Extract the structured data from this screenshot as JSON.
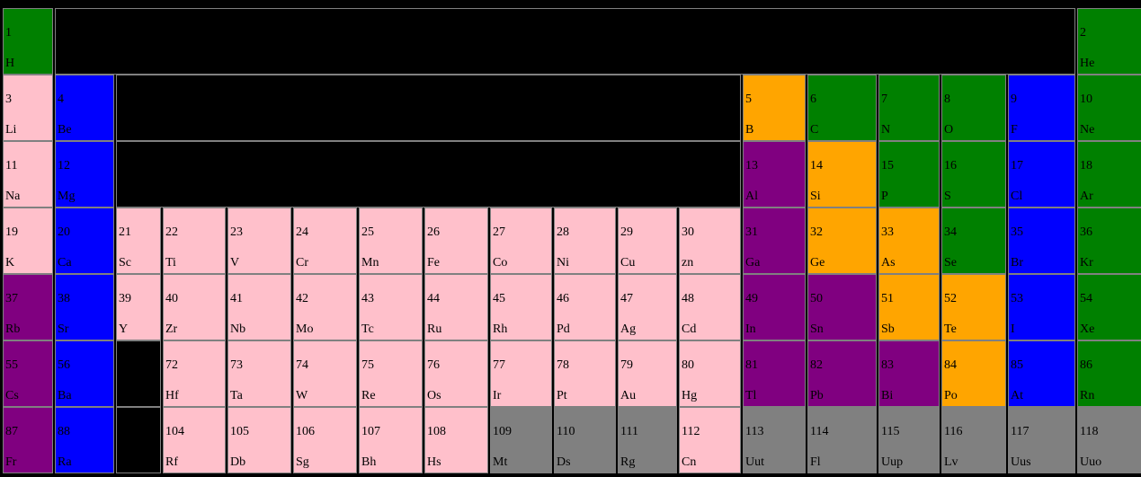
{
  "colors": {
    "nonmetal": "#008000",
    "alkali": "#ffc0cb",
    "transition": "#ffc0cb",
    "alkaline_earth": "#0000ff",
    "halogen": "#0000ff",
    "metalloid": "#ffa500",
    "post_transition": "#800080",
    "unknown": "#808080",
    "empty": "#000000"
  },
  "elements": [
    {
      "n": "1",
      "s": "H",
      "cat": "nonmetal",
      "row": 1,
      "col": 1
    },
    {
      "n": "2",
      "s": "He",
      "cat": "nonmetal",
      "row": 1,
      "col": 18
    },
    {
      "n": "3",
      "s": "Li",
      "cat": "alkali",
      "row": 2,
      "col": 1
    },
    {
      "n": "4",
      "s": "Be",
      "cat": "alkaline_earth",
      "row": 2,
      "col": 2
    },
    {
      "n": "5",
      "s": "B",
      "cat": "metalloid",
      "row": 2,
      "col": 13
    },
    {
      "n": "6",
      "s": "C",
      "cat": "nonmetal",
      "row": 2,
      "col": 14
    },
    {
      "n": "7",
      "s": "N",
      "cat": "nonmetal",
      "row": 2,
      "col": 15
    },
    {
      "n": "8",
      "s": "O",
      "cat": "nonmetal",
      "row": 2,
      "col": 16
    },
    {
      "n": "9",
      "s": "F",
      "cat": "halogen",
      "row": 2,
      "col": 17
    },
    {
      "n": "10",
      "s": "Ne",
      "cat": "nonmetal",
      "row": 2,
      "col": 18
    },
    {
      "n": "11",
      "s": "Na",
      "cat": "alkali",
      "row": 3,
      "col": 1
    },
    {
      "n": "12",
      "s": "Mg",
      "cat": "alkaline_earth",
      "row": 3,
      "col": 2
    },
    {
      "n": "13",
      "s": "Al",
      "cat": "post_transition",
      "row": 3,
      "col": 13
    },
    {
      "n": "14",
      "s": "Si",
      "cat": "metalloid",
      "row": 3,
      "col": 14
    },
    {
      "n": "15",
      "s": "P",
      "cat": "nonmetal",
      "row": 3,
      "col": 15
    },
    {
      "n": "16",
      "s": "S",
      "cat": "nonmetal",
      "row": 3,
      "col": 16
    },
    {
      "n": "17",
      "s": "Cl",
      "cat": "halogen",
      "row": 3,
      "col": 17
    },
    {
      "n": "18",
      "s": "Ar",
      "cat": "nonmetal",
      "row": 3,
      "col": 18
    },
    {
      "n": "19",
      "s": "K",
      "cat": "alkali",
      "row": 4,
      "col": 1
    },
    {
      "n": "20",
      "s": "Ca",
      "cat": "alkaline_earth",
      "row": 4,
      "col": 2
    },
    {
      "n": "21",
      "s": "Sc",
      "cat": "transition",
      "row": 4,
      "col": 3
    },
    {
      "n": "22",
      "s": "Ti",
      "cat": "transition",
      "row": 4,
      "col": 4
    },
    {
      "n": "23",
      "s": "V",
      "cat": "transition",
      "row": 4,
      "col": 5
    },
    {
      "n": "24",
      "s": "Cr",
      "cat": "transition",
      "row": 4,
      "col": 6
    },
    {
      "n": "25",
      "s": "Mn",
      "cat": "transition",
      "row": 4,
      "col": 7
    },
    {
      "n": "26",
      "s": "Fe",
      "cat": "transition",
      "row": 4,
      "col": 8
    },
    {
      "n": "27",
      "s": "Co",
      "cat": "transition",
      "row": 4,
      "col": 9
    },
    {
      "n": "28",
      "s": "Ni",
      "cat": "transition",
      "row": 4,
      "col": 10
    },
    {
      "n": "29",
      "s": "Cu",
      "cat": "transition",
      "row": 4,
      "col": 11
    },
    {
      "n": "30",
      "s": "zn",
      "cat": "transition",
      "row": 4,
      "col": 12
    },
    {
      "n": "31",
      "s": "Ga",
      "cat": "post_transition",
      "row": 4,
      "col": 13
    },
    {
      "n": "32",
      "s": "Ge",
      "cat": "metalloid",
      "row": 4,
      "col": 14
    },
    {
      "n": "33",
      "s": "As",
      "cat": "metalloid",
      "row": 4,
      "col": 15
    },
    {
      "n": "34",
      "s": "Se",
      "cat": "nonmetal",
      "row": 4,
      "col": 16
    },
    {
      "n": "35",
      "s": "Br",
      "cat": "halogen",
      "row": 4,
      "col": 17
    },
    {
      "n": "36",
      "s": "Kr",
      "cat": "nonmetal",
      "row": 4,
      "col": 18
    },
    {
      "n": "37",
      "s": "Rb",
      "cat": "post_transition",
      "row": 5,
      "col": 1
    },
    {
      "n": "38",
      "s": "Sr",
      "cat": "alkaline_earth",
      "row": 5,
      "col": 2
    },
    {
      "n": "39",
      "s": "Y",
      "cat": "transition",
      "row": 5,
      "col": 3
    },
    {
      "n": "40",
      "s": "Zr",
      "cat": "transition",
      "row": 5,
      "col": 4
    },
    {
      "n": "41",
      "s": "Nb",
      "cat": "transition",
      "row": 5,
      "col": 5
    },
    {
      "n": "42",
      "s": "Mo",
      "cat": "transition",
      "row": 5,
      "col": 6
    },
    {
      "n": "43",
      "s": "Tc",
      "cat": "transition",
      "row": 5,
      "col": 7
    },
    {
      "n": "44",
      "s": "Ru",
      "cat": "transition",
      "row": 5,
      "col": 8
    },
    {
      "n": "45",
      "s": "Rh",
      "cat": "transition",
      "row": 5,
      "col": 9
    },
    {
      "n": "46",
      "s": "Pd",
      "cat": "transition",
      "row": 5,
      "col": 10
    },
    {
      "n": "47",
      "s": "Ag",
      "cat": "transition",
      "row": 5,
      "col": 11
    },
    {
      "n": "48",
      "s": "Cd",
      "cat": "transition",
      "row": 5,
      "col": 12
    },
    {
      "n": "49",
      "s": "In",
      "cat": "post_transition",
      "row": 5,
      "col": 13
    },
    {
      "n": "50",
      "s": "Sn",
      "cat": "post_transition",
      "row": 5,
      "col": 14
    },
    {
      "n": "51",
      "s": "Sb",
      "cat": "metalloid",
      "row": 5,
      "col": 15
    },
    {
      "n": "52",
      "s": "Te",
      "cat": "metalloid",
      "row": 5,
      "col": 16
    },
    {
      "n": "53",
      "s": "I",
      "cat": "halogen",
      "row": 5,
      "col": 17
    },
    {
      "n": "54",
      "s": "Xe",
      "cat": "nonmetal",
      "row": 5,
      "col": 18
    },
    {
      "n": "55",
      "s": "Cs",
      "cat": "post_transition",
      "row": 6,
      "col": 1
    },
    {
      "n": "56",
      "s": "Ba",
      "cat": "alkaline_earth",
      "row": 6,
      "col": 2
    },
    {
      "n": "72",
      "s": "Hf",
      "cat": "transition",
      "row": 6,
      "col": 4
    },
    {
      "n": "73",
      "s": "Ta",
      "cat": "transition",
      "row": 6,
      "col": 5
    },
    {
      "n": "74",
      "s": "W",
      "cat": "transition",
      "row": 6,
      "col": 6
    },
    {
      "n": "75",
      "s": "Re",
      "cat": "transition",
      "row": 6,
      "col": 7
    },
    {
      "n": "76",
      "s": "Os",
      "cat": "transition",
      "row": 6,
      "col": 8
    },
    {
      "n": "77",
      "s": "Ir",
      "cat": "transition",
      "row": 6,
      "col": 9
    },
    {
      "n": "78",
      "s": "Pt",
      "cat": "transition",
      "row": 6,
      "col": 10
    },
    {
      "n": "79",
      "s": "Au",
      "cat": "transition",
      "row": 6,
      "col": 11
    },
    {
      "n": "80",
      "s": "Hg",
      "cat": "transition",
      "row": 6,
      "col": 12
    },
    {
      "n": "81",
      "s": "Tl",
      "cat": "post_transition",
      "row": 6,
      "col": 13
    },
    {
      "n": "82",
      "s": "Pb",
      "cat": "post_transition",
      "row": 6,
      "col": 14
    },
    {
      "n": "83",
      "s": "Bi",
      "cat": "post_transition",
      "row": 6,
      "col": 15
    },
    {
      "n": "84",
      "s": "Po",
      "cat": "metalloid",
      "row": 6,
      "col": 16
    },
    {
      "n": "85",
      "s": "At",
      "cat": "halogen",
      "row": 6,
      "col": 17
    },
    {
      "n": "86",
      "s": "Rn",
      "cat": "nonmetal",
      "row": 6,
      "col": 18
    },
    {
      "n": "87",
      "s": "Fr",
      "cat": "post_transition",
      "row": 7,
      "col": 1
    },
    {
      "n": "88",
      "s": "Ra",
      "cat": "alkaline_earth",
      "row": 7,
      "col": 2
    },
    {
      "n": "104",
      "s": "Rf",
      "cat": "transition",
      "row": 7,
      "col": 4
    },
    {
      "n": "105",
      "s": "Db",
      "cat": "transition",
      "row": 7,
      "col": 5
    },
    {
      "n": "106",
      "s": "Sg",
      "cat": "transition",
      "row": 7,
      "col": 6
    },
    {
      "n": "107",
      "s": "Bh",
      "cat": "transition",
      "row": 7,
      "col": 7
    },
    {
      "n": "108",
      "s": "Hs",
      "cat": "transition",
      "row": 7,
      "col": 8
    },
    {
      "n": "109",
      "s": "Mt",
      "cat": "unknown",
      "row": 7,
      "col": 9
    },
    {
      "n": "110",
      "s": "Ds",
      "cat": "unknown",
      "row": 7,
      "col": 10
    },
    {
      "n": "111",
      "s": "Rg",
      "cat": "unknown",
      "row": 7,
      "col": 11
    },
    {
      "n": "112",
      "s": "Cn",
      "cat": "transition",
      "row": 7,
      "col": 12
    },
    {
      "n": "113",
      "s": "Uut",
      "cat": "unknown",
      "row": 7,
      "col": 13
    },
    {
      "n": "114",
      "s": "Fl",
      "cat": "unknown",
      "row": 7,
      "col": 14
    },
    {
      "n": "115",
      "s": "Uup",
      "cat": "unknown",
      "row": 7,
      "col": 15
    },
    {
      "n": "116",
      "s": "Lv",
      "cat": "unknown",
      "row": 7,
      "col": 16
    },
    {
      "n": "117",
      "s": "Uus",
      "cat": "unknown",
      "row": 7,
      "col": 17
    },
    {
      "n": "118",
      "s": "Uuo",
      "cat": "unknown",
      "row": 7,
      "col": 18
    }
  ],
  "empty_regions": [
    {
      "row": 1,
      "col_start": 2,
      "col_end": 18
    },
    {
      "row": 2,
      "col_start": 3,
      "col_end": 13
    },
    {
      "row": 3,
      "col_start": 3,
      "col_end": 13
    },
    {
      "row": 6,
      "col_start": 3,
      "col_end": 4
    },
    {
      "row": 7,
      "col_start": 3,
      "col_end": 4
    }
  ]
}
